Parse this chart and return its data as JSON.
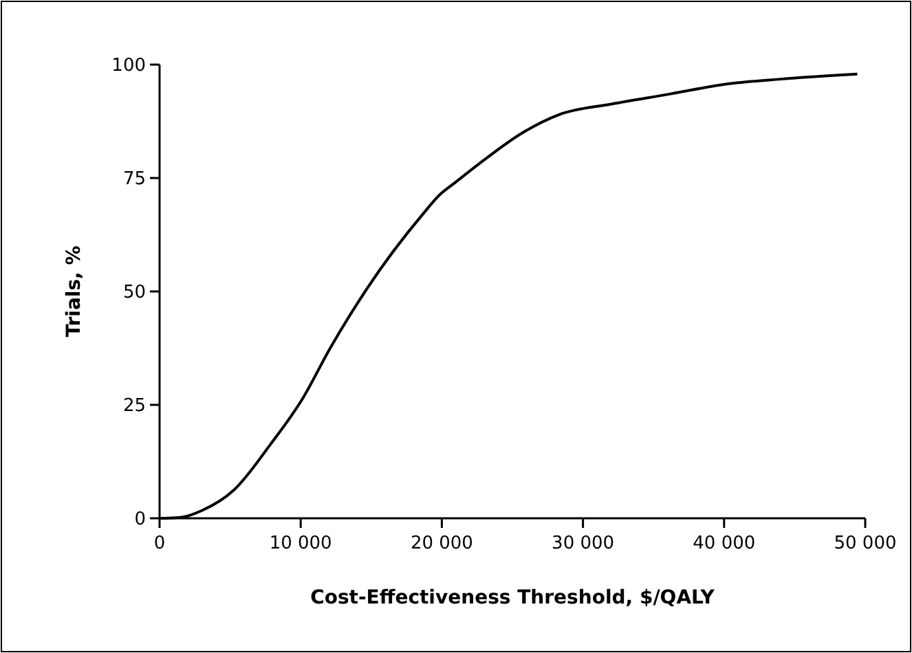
{
  "chart_data": {
    "type": "line",
    "xlabel": "Cost-Effectiveness Threshold, $/QALY",
    "ylabel": "Trials, %",
    "x": [
      0,
      1500,
      3000,
      5260,
      7860,
      10140,
      12090,
      14690,
      18590,
      19880,
      20860,
      23000,
      25730,
      28330,
      32000,
      36130,
      40350,
      44000,
      49440
    ],
    "series": [
      {
        "color": "#000000",
        "values": [
          0,
          0.2,
          1.7,
          6.2,
          16.3,
          26.4,
          37.5,
          50.6,
          66.8,
          71.4,
          73.8,
          79,
          85,
          89,
          91.3,
          93.5,
          95.8,
          96.8,
          97.9
        ]
      }
    ],
    "xlim": [
      0,
      50000
    ],
    "ylim": [
      0,
      100
    ],
    "xticks": [
      0,
      {
        "value": 10000,
        "label": "10 000"
      },
      {
        "value": 20000,
        "label": "20 000"
      },
      {
        "value": 30000,
        "label": "30 000"
      },
      {
        "value": 40000,
        "label": "40 000"
      },
      {
        "value": 50000,
        "label": "50 000"
      }
    ],
    "yticks": [
      0,
      25,
      50,
      75,
      100
    ],
    "marker": "none",
    "line_style": "solid"
  }
}
